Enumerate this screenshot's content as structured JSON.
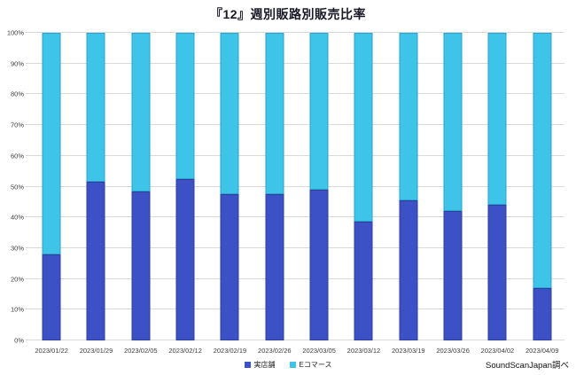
{
  "title": "『12』週別販路別販売比率",
  "source": "SoundScanJapan調べ",
  "legend": [
    {
      "label": "実店舗",
      "color": "#3c51c5"
    },
    {
      "label": "Eコマース",
      "color": "#3ec4e8"
    }
  ],
  "chart_data": {
    "type": "bar",
    "stacked": true,
    "percent_stacked": true,
    "title": "『12』週別販路別販売比率",
    "xlabel": "",
    "ylabel": "",
    "ylim": [
      0,
      100
    ],
    "grid": true,
    "legend_position": "bottom",
    "yticks": [
      "0%",
      "10%",
      "20%",
      "30%",
      "40%",
      "50%",
      "60%",
      "70%",
      "80%",
      "90%",
      "100%"
    ],
    "categories": [
      "2023/01/22",
      "2023/01/29",
      "2023/02/05",
      "2023/02/12",
      "2023/02/19",
      "2023/02/26",
      "2023/03/05",
      "2023/03/12",
      "2023/03/19",
      "2023/03/26",
      "2023/04/02",
      "2023/04/09"
    ],
    "series": [
      {
        "name": "実店舗",
        "color": "#3c51c5",
        "values": [
          28,
          51.5,
          48.5,
          52.5,
          47.5,
          47.5,
          49,
          38.5,
          45.5,
          42,
          44,
          17
        ]
      },
      {
        "name": "Eコマース",
        "color": "#3ec4e8",
        "values": [
          72,
          48.5,
          51.5,
          47.5,
          52.5,
          52.5,
          51,
          61.5,
          54.5,
          58,
          56,
          83
        ]
      }
    ]
  }
}
